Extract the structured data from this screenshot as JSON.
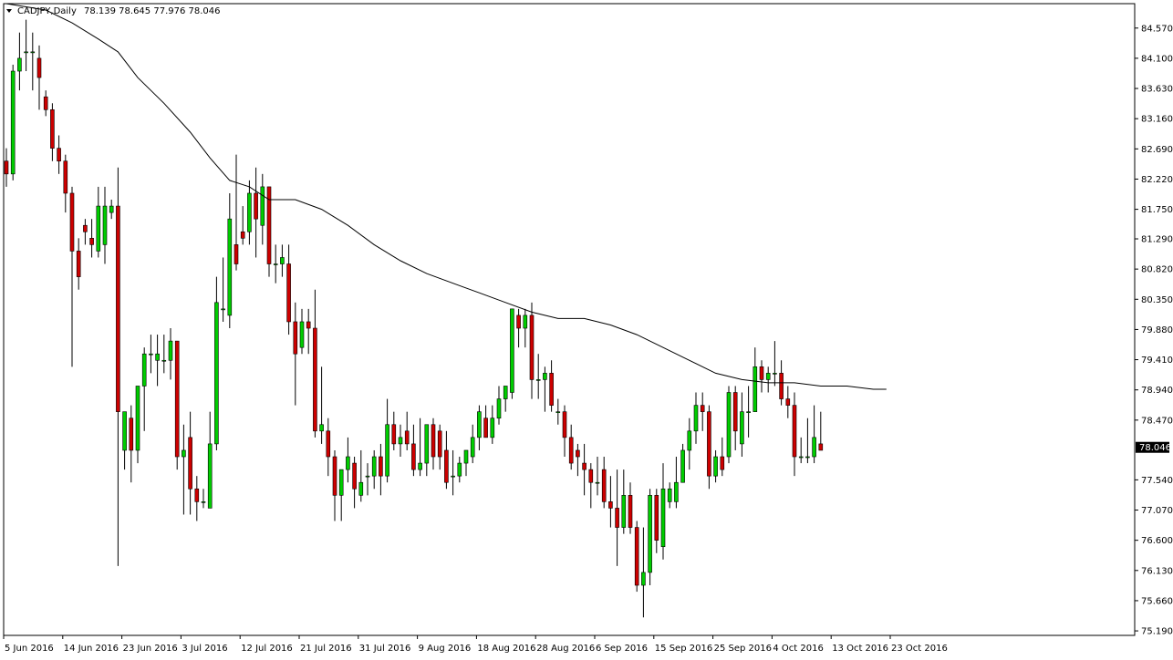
{
  "header": {
    "symbol": "CADJPY,Daily",
    "ohlc": "78.139 78.645 77.976 78.046",
    "menu_icon": "triangle-down-icon"
  },
  "colors": {
    "background": "#ffffff",
    "bull": "#00cc00",
    "bear": "#cc0000",
    "wick": "#000000",
    "ma": "#000000",
    "price_tag_bg": "#000000",
    "price_tag_text": "#ffffff"
  },
  "chart_data": {
    "type": "candlestick",
    "title": "CADJPY,Daily",
    "ylim": [
      75.12,
      84.95
    ],
    "grid": false,
    "last_price": "78.046",
    "y_ticks": [
      "84.570",
      "84.100",
      "83.630",
      "83.160",
      "82.690",
      "82.220",
      "81.750",
      "81.290",
      "80.820",
      "80.350",
      "79.880",
      "79.410",
      "78.940",
      "78.470",
      "78.046",
      "77.540",
      "77.070",
      "76.600",
      "76.130",
      "75.660",
      "75.190"
    ],
    "x_tick_labels": [
      "5 Jun 2016",
      "14 Jun 2016",
      "23 Jun 2016",
      "3 Jul 2016",
      "12 Jul 2016",
      "21 Jul 2016",
      "31 Jul 2016",
      "9 Aug 2016",
      "18 Aug 2016",
      "28 Aug 2016",
      "6 Sep 2016",
      "15 Sep 2016",
      "25 Sep 2016",
      "4 Oct 2016",
      "13 Oct 2016",
      "23 Oct 2016"
    ],
    "x_tick_positions": [
      0,
      9,
      18,
      27,
      36,
      45,
      54,
      63,
      72,
      81,
      90,
      99,
      108,
      117,
      126,
      135
    ],
    "candles": [
      [
        82.5,
        82.7,
        82.1,
        82.3
      ],
      [
        82.3,
        84.0,
        82.2,
        83.9
      ],
      [
        83.9,
        84.5,
        83.6,
        84.1
      ],
      [
        84.2,
        84.7,
        83.9,
        84.2
      ],
      [
        84.2,
        84.5,
        83.6,
        84.2
      ],
      [
        84.1,
        84.3,
        83.3,
        83.8
      ],
      [
        83.5,
        83.6,
        83.2,
        83.3
      ],
      [
        83.3,
        83.4,
        82.5,
        82.7
      ],
      [
        82.7,
        82.9,
        82.3,
        82.5
      ],
      [
        82.5,
        82.6,
        81.7,
        82.0
      ],
      [
        82.0,
        82.1,
        79.3,
        81.1
      ],
      [
        81.1,
        81.3,
        80.5,
        80.7
      ],
      [
        81.5,
        81.6,
        81.2,
        81.4
      ],
      [
        81.3,
        81.6,
        81.0,
        81.2
      ],
      [
        81.1,
        82.1,
        81.0,
        81.8
      ],
      [
        81.2,
        82.1,
        80.9,
        81.8
      ],
      [
        81.7,
        81.9,
        81.6,
        81.8
      ],
      [
        81.8,
        82.4,
        76.2,
        78.6
      ],
      [
        78.0,
        78.6,
        77.7,
        78.6
      ],
      [
        78.5,
        78.7,
        77.5,
        78.0
      ],
      [
        78.0,
        79.0,
        77.8,
        79.0
      ],
      [
        79.0,
        79.6,
        78.3,
        79.5
      ],
      [
        79.5,
        79.8,
        79.2,
        79.5
      ],
      [
        79.4,
        79.8,
        79.0,
        79.5
      ],
      [
        79.4,
        79.8,
        79.2,
        79.4
      ],
      [
        79.4,
        79.9,
        79.1,
        79.7
      ],
      [
        79.7,
        79.7,
        77.7,
        77.9
      ],
      [
        77.9,
        78.4,
        77.0,
        78.0
      ],
      [
        78.2,
        78.6,
        77.0,
        77.4
      ],
      [
        77.4,
        77.6,
        76.9,
        77.2
      ],
      [
        77.2,
        77.4,
        77.1,
        77.2
      ],
      [
        77.1,
        78.6,
        77.1,
        78.1
      ],
      [
        78.1,
        80.7,
        78.0,
        80.3
      ],
      [
        80.2,
        81.0,
        80.0,
        80.2
      ],
      [
        80.1,
        82.0,
        79.9,
        81.6
      ],
      [
        81.2,
        82.6,
        80.8,
        80.9
      ],
      [
        81.4,
        81.8,
        81.2,
        81.3
      ],
      [
        81.4,
        82.2,
        81.2,
        82.0
      ],
      [
        82.0,
        82.4,
        81.0,
        81.6
      ],
      [
        81.5,
        82.3,
        81.2,
        82.1
      ],
      [
        82.1,
        82.1,
        80.7,
        80.9
      ],
      [
        80.9,
        81.2,
        80.6,
        80.9
      ],
      [
        80.9,
        81.2,
        80.7,
        81.0
      ],
      [
        80.9,
        81.2,
        79.8,
        80.0
      ],
      [
        80.0,
        80.3,
        78.7,
        79.5
      ],
      [
        79.6,
        80.2,
        79.5,
        80.0
      ],
      [
        80.0,
        80.2,
        79.5,
        79.9
      ],
      [
        79.9,
        80.5,
        78.2,
        78.3
      ],
      [
        78.3,
        79.3,
        78.1,
        78.4
      ],
      [
        78.3,
        78.5,
        77.6,
        77.9
      ],
      [
        77.9,
        78.0,
        76.9,
        77.3
      ],
      [
        77.3,
        77.7,
        76.9,
        77.7
      ],
      [
        77.7,
        78.2,
        77.5,
        77.9
      ],
      [
        77.8,
        77.9,
        77.1,
        77.4
      ],
      [
        77.3,
        78.0,
        77.2,
        77.5
      ],
      [
        77.6,
        77.8,
        77.3,
        77.6
      ],
      [
        77.6,
        78.0,
        77.4,
        77.9
      ],
      [
        77.9,
        78.1,
        77.3,
        77.6
      ],
      [
        77.6,
        78.8,
        77.5,
        78.4
      ],
      [
        78.4,
        78.6,
        78.0,
        78.1
      ],
      [
        78.1,
        78.4,
        77.9,
        78.2
      ],
      [
        78.3,
        78.6,
        78.0,
        78.1
      ],
      [
        78.1,
        78.4,
        77.6,
        77.7
      ],
      [
        77.7,
        78.5,
        77.6,
        77.8
      ],
      [
        77.8,
        78.4,
        77.6,
        78.4
      ],
      [
        78.4,
        78.5,
        77.7,
        77.9
      ],
      [
        78.3,
        78.4,
        77.7,
        77.9
      ],
      [
        78.0,
        78.3,
        77.4,
        77.5
      ],
      [
        77.6,
        78.0,
        77.3,
        77.6
      ],
      [
        77.6,
        77.9,
        77.5,
        77.8
      ],
      [
        77.8,
        78.0,
        77.6,
        78.0
      ],
      [
        77.9,
        78.4,
        77.8,
        78.2
      ],
      [
        78.2,
        78.7,
        78.0,
        78.6
      ],
      [
        78.5,
        78.7,
        78.2,
        78.2
      ],
      [
        78.2,
        78.7,
        78.1,
        78.5
      ],
      [
        78.5,
        79.0,
        78.4,
        78.8
      ],
      [
        78.8,
        79.0,
        78.6,
        79.0
      ],
      [
        78.9,
        80.2,
        78.8,
        80.2
      ],
      [
        80.1,
        80.2,
        79.6,
        79.9
      ],
      [
        79.9,
        80.2,
        79.6,
        80.1
      ],
      [
        80.1,
        80.3,
        78.8,
        79.1
      ],
      [
        79.1,
        79.5,
        78.8,
        79.1
      ],
      [
        79.1,
        79.3,
        78.6,
        79.2
      ],
      [
        79.2,
        79.4,
        78.6,
        78.7
      ],
      [
        78.6,
        78.8,
        78.4,
        78.6
      ],
      [
        78.6,
        78.7,
        77.9,
        78.2
      ],
      [
        78.2,
        78.4,
        77.7,
        77.8
      ],
      [
        78.0,
        78.1,
        77.6,
        77.9
      ],
      [
        77.8,
        78.1,
        77.3,
        77.7
      ],
      [
        77.7,
        77.8,
        77.1,
        77.5
      ],
      [
        77.5,
        77.9,
        77.3,
        77.5
      ],
      [
        77.7,
        77.9,
        77.1,
        77.2
      ],
      [
        77.2,
        77.6,
        76.8,
        77.1
      ],
      [
        77.1,
        77.7,
        76.2,
        76.8
      ],
      [
        76.8,
        77.7,
        76.7,
        77.3
      ],
      [
        77.3,
        77.5,
        76.7,
        76.8
      ],
      [
        76.8,
        76.9,
        75.8,
        75.9
      ],
      [
        75.9,
        76.8,
        75.4,
        76.1
      ],
      [
        76.1,
        77.4,
        75.9,
        77.3
      ],
      [
        77.3,
        77.4,
        76.4,
        76.6
      ],
      [
        76.5,
        77.8,
        76.3,
        77.4
      ],
      [
        77.2,
        77.5,
        77.1,
        77.4
      ],
      [
        77.2,
        77.9,
        77.1,
        77.5
      ],
      [
        77.5,
        78.1,
        77.5,
        78.0
      ],
      [
        78.0,
        78.5,
        77.7,
        78.3
      ],
      [
        78.3,
        78.9,
        78.1,
        78.7
      ],
      [
        78.7,
        78.9,
        78.3,
        78.6
      ],
      [
        78.6,
        78.7,
        77.4,
        77.6
      ],
      [
        77.6,
        78.0,
        77.5,
        77.9
      ],
      [
        77.9,
        78.2,
        77.6,
        77.7
      ],
      [
        77.9,
        79.0,
        77.8,
        78.9
      ],
      [
        78.9,
        79.0,
        78.0,
        78.3
      ],
      [
        78.1,
        78.9,
        77.9,
        78.6
      ],
      [
        78.6,
        79.0,
        78.2,
        78.6
      ],
      [
        78.6,
        79.6,
        78.6,
        79.3
      ],
      [
        79.3,
        79.4,
        78.9,
        79.1
      ],
      [
        79.1,
        79.3,
        78.9,
        79.2
      ],
      [
        79.2,
        79.7,
        79.0,
        79.2
      ],
      [
        79.2,
        79.4,
        78.7,
        78.8
      ],
      [
        78.8,
        79.0,
        78.5,
        78.7
      ],
      [
        78.7,
        78.9,
        77.6,
        77.9
      ],
      [
        77.9,
        78.2,
        77.8,
        77.9
      ],
      [
        77.9,
        78.5,
        77.8,
        77.9
      ],
      [
        77.9,
        78.7,
        77.8,
        78.2
      ],
      [
        78.1,
        78.6,
        78.0,
        78.0
      ]
    ],
    "moving_average": [
      [
        0,
        84.95
      ],
      [
        6,
        84.85
      ],
      [
        10,
        84.65
      ],
      [
        14,
        84.4
      ],
      [
        17,
        84.2
      ],
      [
        20,
        83.8
      ],
      [
        24,
        83.4
      ],
      [
        28,
        82.95
      ],
      [
        31,
        82.55
      ],
      [
        34,
        82.2
      ],
      [
        37,
        82.1
      ],
      [
        40,
        81.9
      ],
      [
        44,
        81.9
      ],
      [
        48,
        81.75
      ],
      [
        52,
        81.5
      ],
      [
        56,
        81.2
      ],
      [
        60,
        80.95
      ],
      [
        64,
        80.75
      ],
      [
        68,
        80.6
      ],
      [
        72,
        80.45
      ],
      [
        76,
        80.3
      ],
      [
        80,
        80.15
      ],
      [
        84,
        80.05
      ],
      [
        88,
        80.05
      ],
      [
        92,
        79.95
      ],
      [
        96,
        79.8
      ],
      [
        100,
        79.6
      ],
      [
        104,
        79.4
      ],
      [
        108,
        79.2
      ],
      [
        112,
        79.1
      ],
      [
        116,
        79.05
      ],
      [
        120,
        79.05
      ],
      [
        124,
        79.0
      ],
      [
        128,
        79.0
      ],
      [
        132,
        78.95
      ],
      [
        134,
        78.95
      ]
    ]
  }
}
